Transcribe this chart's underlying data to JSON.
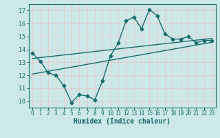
{
  "title": "",
  "xlabel": "Humidex (Indice chaleur)",
  "bg_color": "#cce8e8",
  "grid_color": "#e8c8c8",
  "line_color": "#1a6b6b",
  "xlim": [
    -0.5,
    23.5
  ],
  "ylim": [
    9.5,
    17.5
  ],
  "xticks": [
    0,
    1,
    2,
    3,
    4,
    5,
    6,
    7,
    8,
    9,
    10,
    11,
    12,
    13,
    14,
    15,
    16,
    17,
    18,
    19,
    20,
    21,
    22,
    23
  ],
  "yticks": [
    10,
    11,
    12,
    13,
    14,
    15,
    16,
    17
  ],
  "curve1_x": [
    0,
    1,
    2,
    3,
    4,
    5,
    6,
    7,
    8,
    9,
    10,
    11,
    12,
    13,
    14,
    15,
    16,
    17,
    18,
    19,
    20,
    21,
    22,
    23
  ],
  "curve1_y": [
    13.7,
    13.1,
    12.2,
    12.0,
    11.2,
    9.9,
    10.5,
    10.4,
    10.1,
    11.6,
    13.5,
    14.5,
    16.2,
    16.5,
    15.6,
    17.1,
    16.6,
    15.2,
    14.8,
    14.8,
    15.0,
    14.5,
    14.7,
    14.7
  ],
  "line1_x": [
    0,
    23
  ],
  "line1_y": [
    13.3,
    14.85
  ],
  "line2_x": [
    0,
    23
  ],
  "line2_y": [
    12.1,
    14.55
  ],
  "marker_size": 2.5,
  "line_width": 1.0
}
